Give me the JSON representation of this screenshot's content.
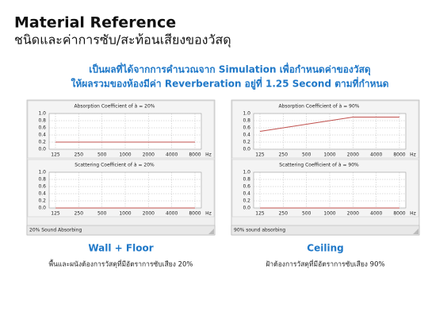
{
  "header": {
    "title": "Material Reference",
    "subtitle": "ชนิดและค่าการซับ/สะท้อนเสียงของวัสดุ"
  },
  "heading": [
    "เป็นผลที่ได้จากการคำนวณจาก Simulation เพื่อกำหนดค่าของวัสดุ",
    "ให้ผลรวมของห้องมีค่า Reverberation อยู่ที่ 1.25 Second ตามที่กำหนด"
  ],
  "panels": [
    {
      "charts": [
        {
          "type": "line",
          "title": "Absorption Coefficient of à = 20%",
          "x_label": "Hz",
          "color": "#c0504d",
          "grid": true,
          "categories": [
            "125",
            "250",
            "500",
            "1000",
            "2000",
            "4000",
            "8000"
          ],
          "values": [
            0.2,
            0.2,
            0.2,
            0.2,
            0.2,
            0.2,
            0.2
          ],
          "ylim": [
            0,
            1
          ],
          "yticks": [
            {
              "value": 1,
              "label": "1.0"
            },
            {
              "value": 0.8,
              "label": "0.8"
            },
            {
              "value": 0.6,
              "label": "0.6"
            },
            {
              "value": 0.4,
              "label": "0.4"
            },
            {
              "value": 0.2,
              "label": "0.2"
            },
            {
              "value": 0,
              "label": "0.0"
            }
          ]
        },
        {
          "type": "line",
          "title": "Scattering Coefficient of à = 20%",
          "x_label": "Hz",
          "color": "#c0504d",
          "grid": true,
          "categories": [
            "125",
            "250",
            "500",
            "1000",
            "2000",
            "4000",
            "8000"
          ],
          "values": [
            0,
            0,
            0,
            0,
            0,
            0,
            0
          ],
          "ylim": [
            0,
            1
          ],
          "yticks": [
            {
              "value": 1,
              "label": "1.0"
            },
            {
              "value": 0.8,
              "label": "0.8"
            },
            {
              "value": 0.6,
              "label": "0.6"
            },
            {
              "value": 0.4,
              "label": "0.4"
            },
            {
              "value": 0.2,
              "label": "0.2"
            },
            {
              "value": 0,
              "label": "0.0"
            }
          ]
        }
      ],
      "status": "20% Sound Absorbing",
      "caption": {
        "title": "Wall + Floor",
        "description": "พื้นและผนังต้องการวัสดุที่มีอัตราการซับเสียง 20%"
      }
    },
    {
      "charts": [
        {
          "type": "line",
          "title": "Absorption Coefficient of à = 90%",
          "x_label": "Hz",
          "color": "#c0504d",
          "grid": true,
          "categories": [
            "125",
            "250",
            "500",
            "1000",
            "2000",
            "4000",
            "8000"
          ],
          "values": [
            0.5,
            0.6,
            0.7,
            0.8,
            0.9,
            0.9,
            0.9
          ],
          "ylim": [
            0,
            1
          ],
          "yticks": [
            {
              "value": 1,
              "label": "1.0"
            },
            {
              "value": 0.8,
              "label": "0.8"
            },
            {
              "value": 0.6,
              "label": "0.6"
            },
            {
              "value": 0.4,
              "label": "0.4"
            },
            {
              "value": 0.2,
              "label": "0.2"
            },
            {
              "value": 0,
              "label": "0.0"
            }
          ]
        },
        {
          "type": "line",
          "title": "Scattering Coefficient of à = 90%",
          "x_label": "Hz",
          "color": "#c0504d",
          "grid": true,
          "categories": [
            "125",
            "250",
            "500",
            "1000",
            "2000",
            "4000",
            "8000"
          ],
          "values": [
            0,
            0,
            0,
            0,
            0,
            0,
            0
          ],
          "ylim": [
            0,
            1
          ],
          "yticks": [
            {
              "value": 1,
              "label": "1.0"
            },
            {
              "value": 0.8,
              "label": "0.8"
            },
            {
              "value": 0.6,
              "label": "0.6"
            },
            {
              "value": 0.4,
              "label": "0.4"
            },
            {
              "value": 0.2,
              "label": "0.2"
            },
            {
              "value": 0,
              "label": "0.0"
            }
          ]
        }
      ],
      "status": "90% sound absorbing",
      "caption": {
        "title": "Ceiling",
        "description": "ฝ้าต้องการวัสดุที่มีอัตราการซับเสียง 90%"
      }
    }
  ]
}
